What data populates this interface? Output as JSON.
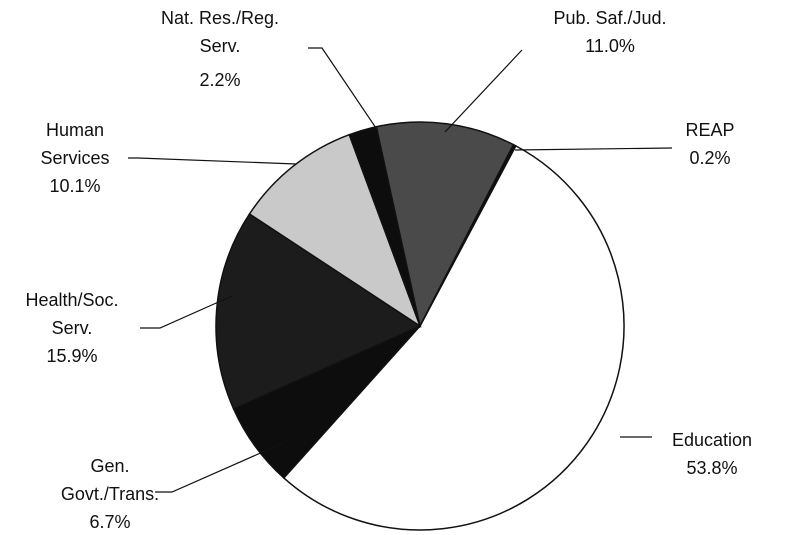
{
  "chart_data": {
    "type": "pie",
    "categories": [
      "Education",
      "Gen. Govt./Trans.",
      "Health/Soc. Serv.",
      "Human Services",
      "Nat. Res./Reg. Serv.",
      "Pub. Saf./Jud.",
      "REAP"
    ],
    "values": [
      53.8,
      6.7,
      15.9,
      10.1,
      2.2,
      11.0,
      0.2
    ],
    "value_labels": [
      "53.8%",
      "6.7%",
      "15.9%",
      "10.1%",
      "2.2%",
      "11.0%",
      "0.2%"
    ],
    "colors": [
      "#ffffff",
      "#0d0d0d",
      "#1c1c1c",
      "#c9c9c9",
      "#0d0d0d",
      "#4a4a4a",
      "#0d0d0d"
    ]
  }
}
